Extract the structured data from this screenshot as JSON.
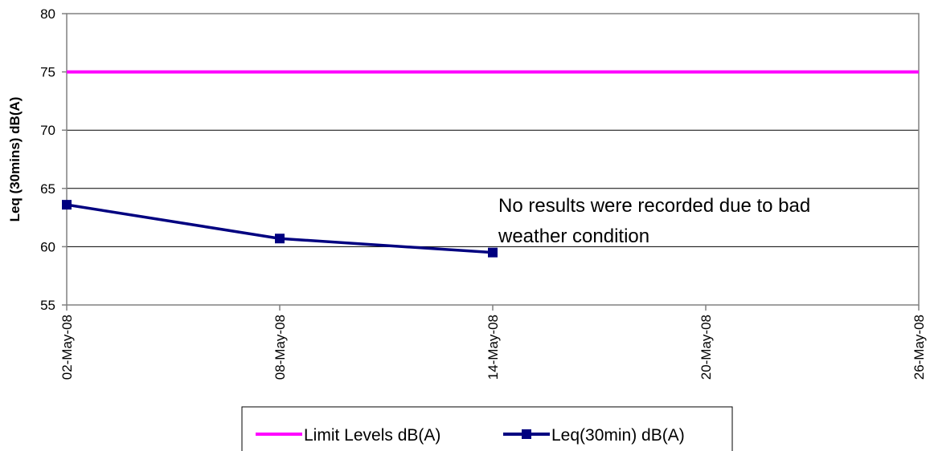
{
  "chart_data": {
    "type": "line",
    "ylabel": "Leq (30mins) dB(A)",
    "ylim": [
      55,
      80
    ],
    "y_ticks": [
      "55",
      "60",
      "65",
      "70",
      "75",
      "80"
    ],
    "x_ticks": [
      "02-May-08",
      "08-May-08",
      "14-May-08",
      "20-May-08",
      "26-May-08"
    ],
    "xlim": [
      "2008-05-02",
      "2008-05-26"
    ],
    "grid": "horizontal",
    "legend_position": "bottom",
    "series": [
      {
        "name": "Limit Levels dB(A)",
        "color": "#ff00ff",
        "marker": "none",
        "x": [
          "2008-05-02",
          "2008-05-26"
        ],
        "y": [
          75,
          75
        ]
      },
      {
        "name": "Leq(30min) dB(A)",
        "color": "#000080",
        "marker": "square",
        "x": [
          "2008-05-02",
          "2008-05-08",
          "2008-05-14"
        ],
        "y": [
          63.6,
          60.7,
          59.5
        ]
      }
    ],
    "annotations": [
      {
        "lines": [
          "No results were recorded due to bad",
          "weather condition"
        ]
      }
    ]
  }
}
